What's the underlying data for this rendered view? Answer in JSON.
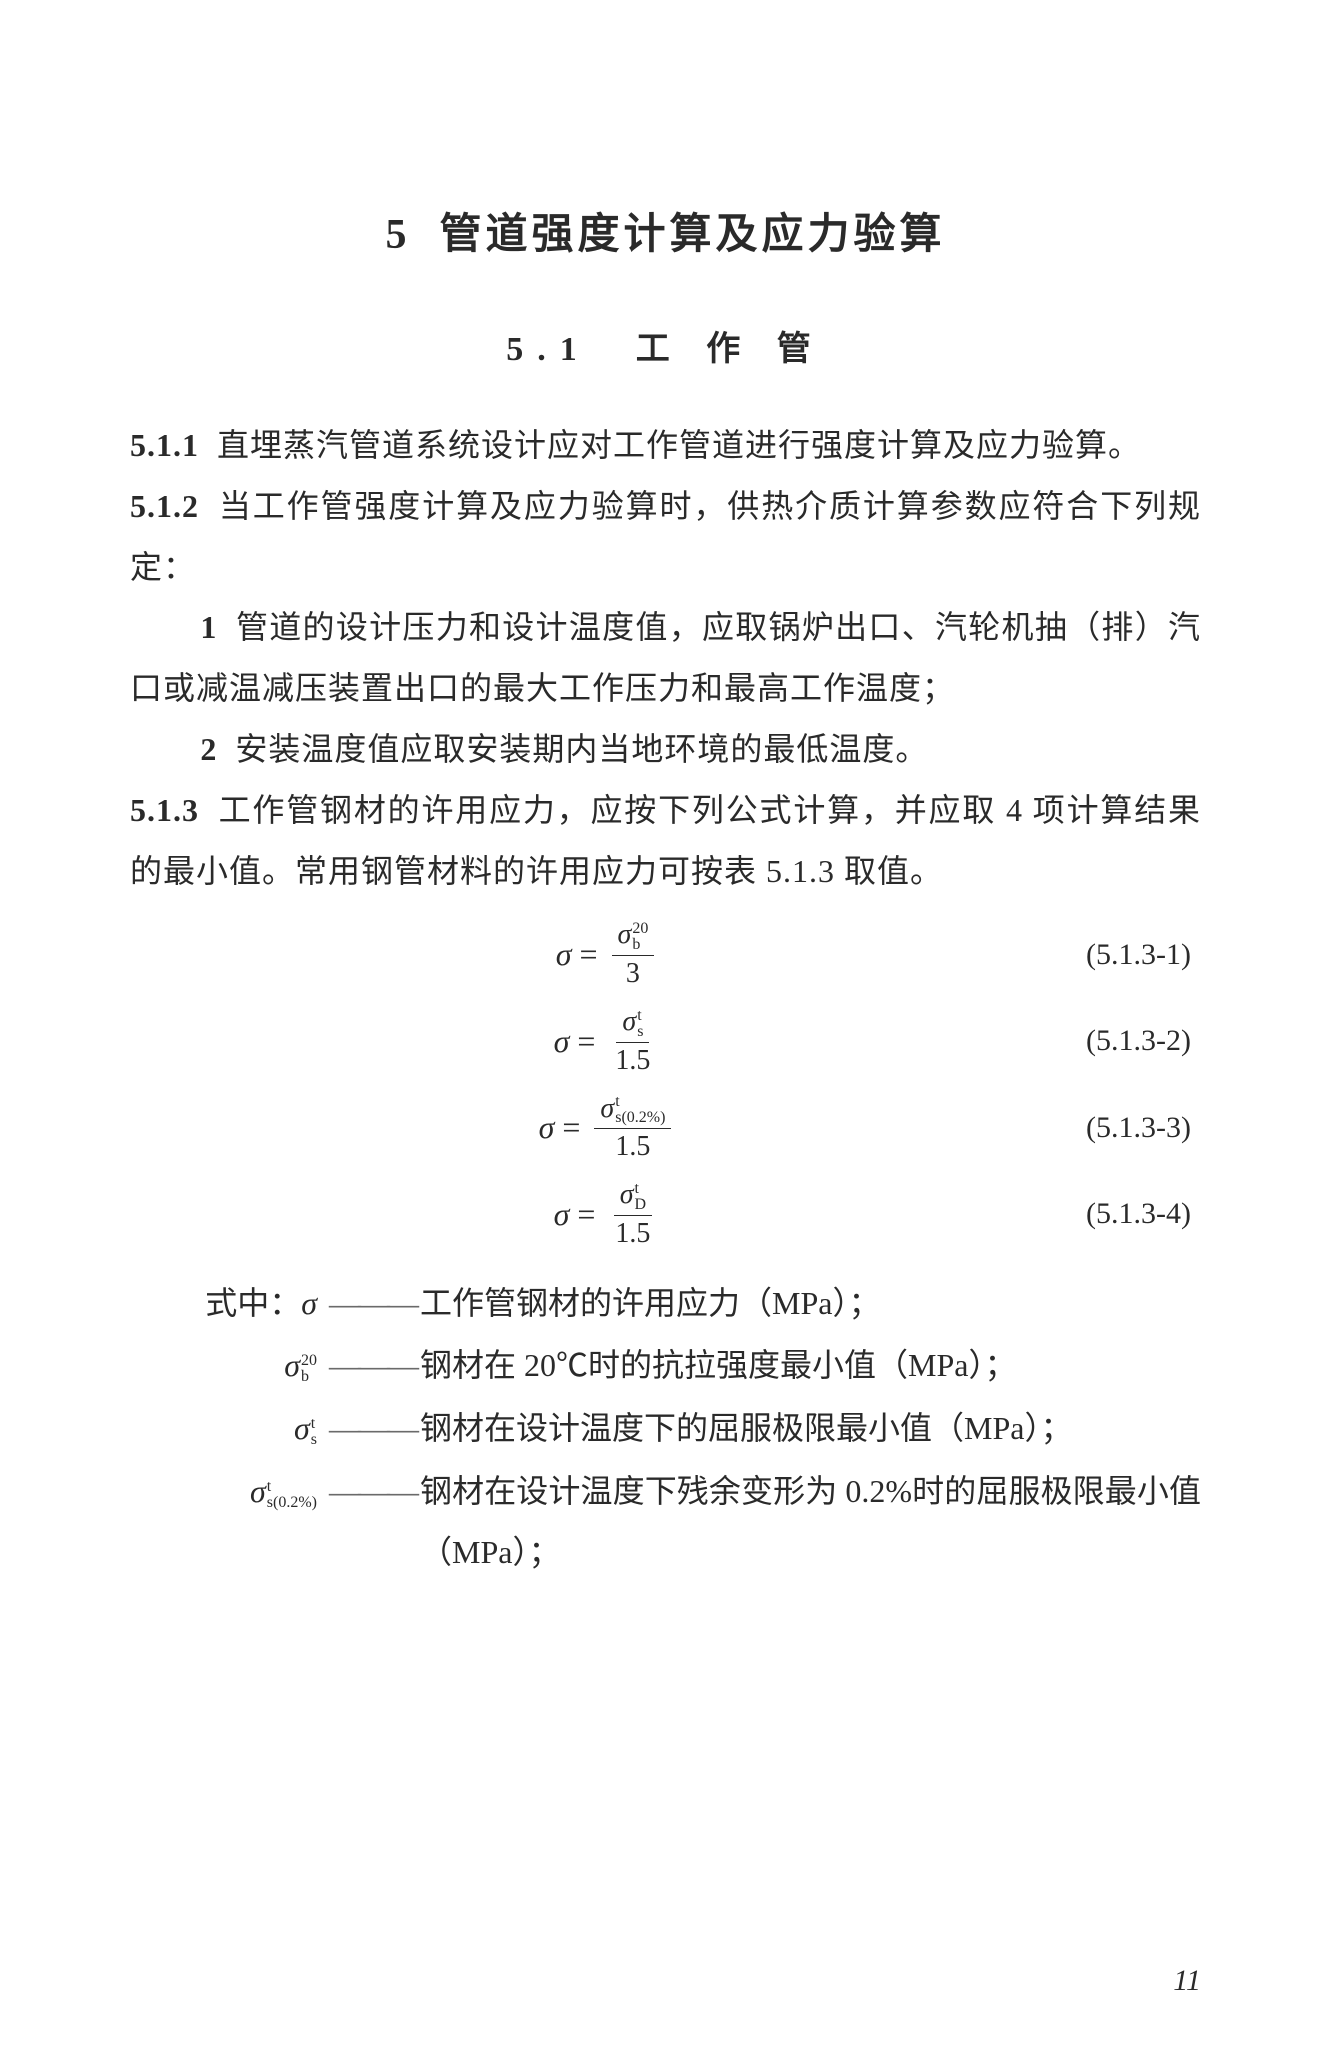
{
  "chapter": {
    "number": "5",
    "title": "管道强度计算及应力验算"
  },
  "section": {
    "number": "5.1",
    "title": "工 作 管"
  },
  "clauses": {
    "c511": {
      "number": "5.1.1",
      "text": "直埋蒸汽管道系统设计应对工作管道进行强度计算及应力验算。"
    },
    "c512": {
      "number": "5.1.2",
      "text": "当工作管强度计算及应力验算时，供热介质计算参数应符合下列规定：",
      "items": {
        "i1": {
          "num": "1",
          "text": "管道的设计压力和设计温度值，应取锅炉出口、汽轮机抽（排）汽口或减温减压装置出口的最大工作压力和最高工作温度；"
        },
        "i2": {
          "num": "2",
          "text": "安装温度值应取安装期内当地环境的最低温度。"
        }
      }
    },
    "c513": {
      "number": "5.1.3",
      "text": "工作管钢材的许用应力，应按下列公式计算，并应取 4 项计算结果的最小值。常用钢管材料的许用应力可按表 5.1.3 取值。"
    }
  },
  "equations": {
    "eq1": {
      "label": "(5.1.3-1)",
      "lhs": "σ",
      "num_sym": "σ",
      "num_sup": "20",
      "num_sub": "b",
      "den": "3"
    },
    "eq2": {
      "label": "(5.1.3-2)",
      "lhs": "σ",
      "num_sym": "σ",
      "num_sup": "t",
      "num_sub": "s",
      "den": "1.5"
    },
    "eq3": {
      "label": "(5.1.3-3)",
      "lhs": "σ",
      "num_sym": "σ",
      "num_sup": "t",
      "num_sub": "s(0.2%)",
      "den": "1.5"
    },
    "eq4": {
      "label": "(5.1.3-4)",
      "lhs": "σ",
      "num_sym": "σ",
      "num_sup": "t",
      "num_sub": "D",
      "den": "1.5"
    }
  },
  "definitions": {
    "intro": "式中：",
    "d1": {
      "symbol_main": "σ",
      "symbol_sup": "",
      "symbol_sub": "",
      "text": "工作管钢材的许用应力（MPa）；"
    },
    "d2": {
      "symbol_main": "σ",
      "symbol_sup": "20",
      "symbol_sub": "b",
      "text": "钢材在 20℃时的抗拉强度最小值（MPa）；"
    },
    "d3": {
      "symbol_main": "σ",
      "symbol_sup": "t",
      "symbol_sub": "s",
      "text": "钢材在设计温度下的屈服极限最小值（MPa）；"
    },
    "d4": {
      "symbol_main": "σ",
      "symbol_sup": "t",
      "symbol_sub": "s(0.2%)",
      "text": "钢材在设计温度下残余变形为 0.2%时的屈服极限最小值（MPa）；"
    }
  },
  "page_number": "11",
  "style": {
    "font_family": "SimSun",
    "background": "#ffffff",
    "text_color": "#2a2a2a",
    "chapter_fontsize": 42,
    "section_fontsize": 34,
    "body_fontsize": 32
  }
}
